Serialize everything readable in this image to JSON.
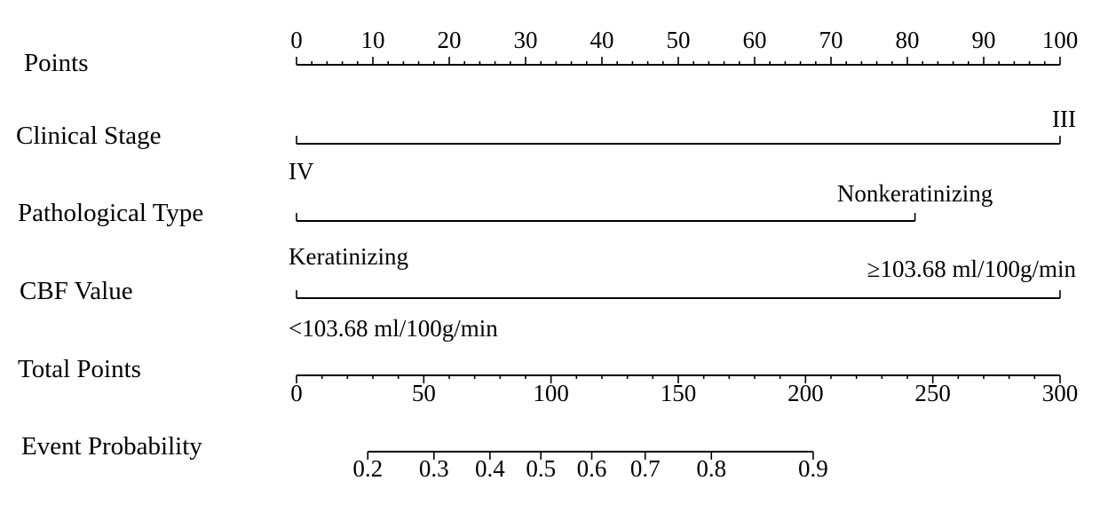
{
  "chart_data": {
    "type": "nomogram",
    "rows": [
      {
        "id": "points",
        "label": "Points"
      },
      {
        "id": "clinical-stage",
        "label": "Clinical Stage"
      },
      {
        "id": "pathological-type",
        "label": "Pathological Type"
      },
      {
        "id": "cbf-value",
        "label": "CBF Value"
      },
      {
        "id": "total-points",
        "label": "Total Points"
      },
      {
        "id": "event-probability",
        "label": "Event Probability"
      }
    ],
    "points_scale": {
      "range": [
        0,
        100
      ],
      "major_ticks": [
        0,
        10,
        20,
        30,
        40,
        50,
        60,
        70,
        80,
        90,
        100
      ],
      "minor_step": 2,
      "tick_labels": [
        "0",
        "10",
        "20",
        "30",
        "40",
        "50",
        "60",
        "70",
        "80",
        "90",
        "100"
      ]
    },
    "predictors": [
      {
        "name": "Clinical Stage",
        "levels": [
          {
            "label": "IV",
            "points": 0
          },
          {
            "label": "III",
            "points": 100
          }
        ]
      },
      {
        "name": "Pathological Type",
        "levels": [
          {
            "label": "Keratinizing",
            "points": 0
          },
          {
            "label": "Nonkeratinizing",
            "points": 81
          }
        ]
      },
      {
        "name": "CBF Value",
        "levels": [
          {
            "label": "<103.68 ml/100g/min",
            "points": 0
          },
          {
            "label": "≥103.68 ml/100g/min",
            "points": 100
          }
        ]
      }
    ],
    "total_points_scale": {
      "range": [
        0,
        300
      ],
      "major_ticks": [
        0,
        50,
        100,
        150,
        200,
        250,
        300
      ],
      "minor_step": 10,
      "tick_labels": [
        "0",
        "50",
        "100",
        "150",
        "200",
        "250",
        "300"
      ]
    },
    "event_probability": {
      "values": [
        0.2,
        0.3,
        0.4,
        0.5,
        0.6,
        0.7,
        0.8,
        0.9
      ],
      "tick_labels": [
        "0.2",
        "0.3",
        "0.4",
        "0.5",
        "0.6",
        "0.7",
        "0.8",
        "0.9"
      ],
      "total_points_at_value": [
        28,
        54,
        76,
        96,
        116,
        137,
        163,
        203
      ]
    }
  }
}
